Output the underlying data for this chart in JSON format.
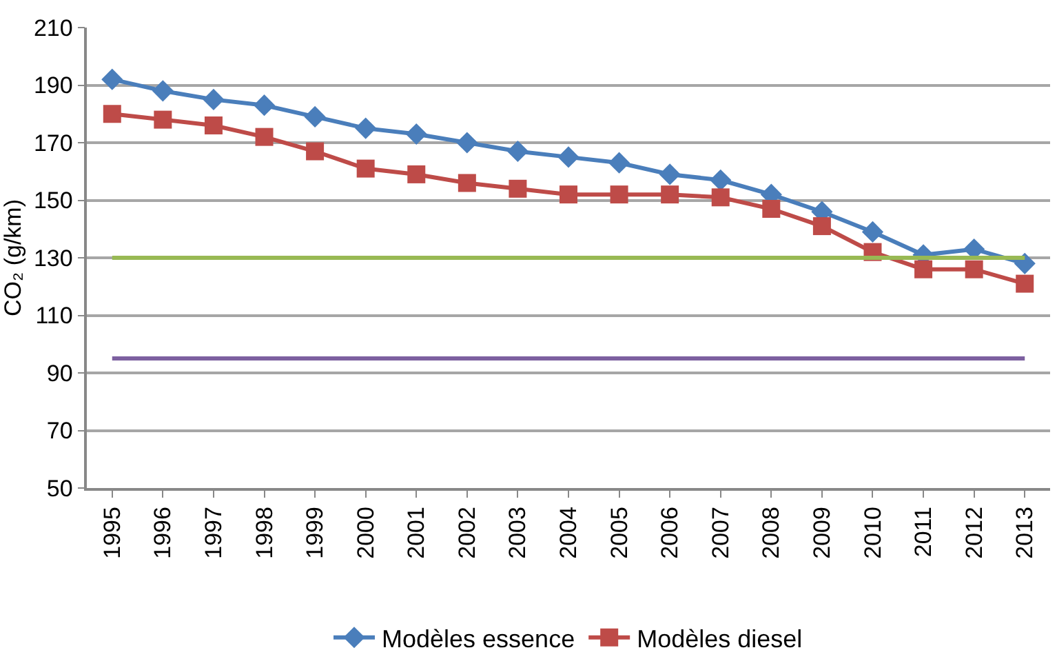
{
  "chart_data": {
    "type": "line",
    "ylabel": "CO₂ (g/km)",
    "categories": [
      "1995",
      "1996",
      "1997",
      "1998",
      "1999",
      "2000",
      "2001",
      "2002",
      "2003",
      "2004",
      "2005",
      "2006",
      "2007",
      "2008",
      "2009",
      "2010",
      "2011",
      "2012",
      "2013"
    ],
    "series": [
      {
        "name": "Modèles essence",
        "color": "#4a7ebb",
        "marker": "diamond",
        "values": [
          192,
          188,
          185,
          183,
          179,
          175,
          173,
          170,
          167,
          165,
          163,
          159,
          157,
          152,
          146,
          139,
          131,
          133,
          128
        ]
      },
      {
        "name": "Modèles diesel",
        "color": "#be4b48",
        "marker": "square",
        "values": [
          180,
          178,
          176,
          172,
          167,
          161,
          159,
          156,
          154,
          152,
          152,
          152,
          151,
          147,
          141,
          132,
          126,
          126,
          121
        ]
      }
    ],
    "ref_lines": [
      {
        "axis": "y",
        "value": 130,
        "color": "#98b954"
      },
      {
        "axis": "y",
        "value": 95,
        "color": "#7d60a0"
      }
    ],
    "ylim": [
      50,
      210
    ],
    "yticks": [
      50,
      70,
      90,
      110,
      130,
      150,
      170,
      190,
      210
    ],
    "grid": "y",
    "legend": "bottom",
    "line_style": "solid"
  }
}
